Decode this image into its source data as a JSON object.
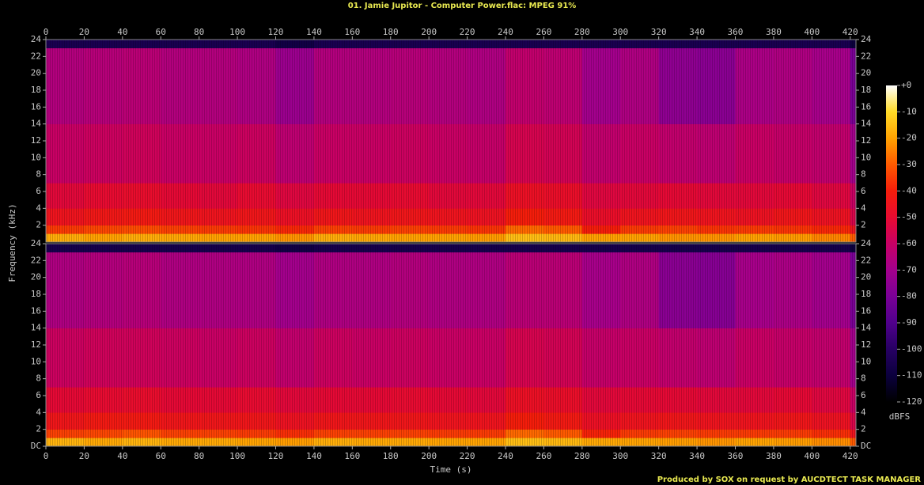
{
  "chart_data": {
    "type": "spectrogram",
    "title": "01. Jamie Jupitor - Computer Power.flac: MPEG 91%",
    "x_label": "Time (s)",
    "y_label": "Frequency (kHz)",
    "colorbar_label": "dBFS",
    "footer": "Produced by SOX on request by AUCDTECT TASK MANAGER",
    "xlim": [
      0,
      423
    ],
    "xticks": [
      0,
      20,
      40,
      60,
      80,
      100,
      120,
      140,
      160,
      180,
      200,
      220,
      240,
      260,
      280,
      300,
      320,
      340,
      360,
      380,
      400,
      420
    ],
    "ylim": [
      0,
      24
    ],
    "clim": [
      -120,
      0
    ],
    "cticks": [
      {
        "value": 0,
        "label": "+0"
      },
      -10,
      -20,
      -30,
      -40,
      -50,
      -60,
      -70,
      -80,
      -90,
      -100,
      -110,
      -120
    ],
    "time_edges": [
      0,
      20,
      40,
      60,
      80,
      100,
      120,
      140,
      160,
      180,
      200,
      220,
      240,
      260,
      280,
      300,
      320,
      340,
      360,
      380,
      400,
      420,
      423
    ],
    "freq_edges": [
      0,
      1,
      2,
      4,
      7,
      14,
      23,
      24
    ],
    "channels": [
      {
        "yticks": [
          2,
          4,
          6,
          8,
          10,
          12,
          14,
          16,
          18,
          20,
          22,
          24
        ],
        "values": [
          [
            -18,
            -20,
            -18,
            -19,
            -20,
            -20,
            -22,
            -18,
            -19,
            -20,
            -20,
            -21,
            -15,
            -16,
            -20,
            -20,
            -22,
            -22,
            -20,
            -21,
            -24,
            -30
          ],
          [
            -35,
            -33,
            -32,
            -34,
            -35,
            -36,
            -38,
            -34,
            -35,
            -34,
            -35,
            -36,
            -28,
            -30,
            -40,
            -35,
            -34,
            -36,
            -35,
            -36,
            -38,
            -45
          ],
          [
            -45,
            -43,
            -42,
            -44,
            -45,
            -44,
            -47,
            -44,
            -45,
            -44,
            -45,
            -46,
            -40,
            -42,
            -48,
            -45,
            -44,
            -45,
            -46,
            -44,
            -46,
            -55
          ],
          [
            -52,
            -50,
            -49,
            -51,
            -52,
            -50,
            -53,
            -51,
            -51,
            -50,
            -52,
            -52,
            -47,
            -48,
            -53,
            -52,
            -51,
            -52,
            -52,
            -51,
            -53,
            -60
          ],
          [
            -60,
            -59,
            -58,
            -60,
            -60,
            -59,
            -63,
            -60,
            -60,
            -59,
            -60,
            -61,
            -56,
            -57,
            -62,
            -60,
            -62,
            -63,
            -60,
            -61,
            -62,
            -70
          ],
          [
            -66,
            -65,
            -64,
            -66,
            -66,
            -67,
            -72,
            -66,
            -66,
            -65,
            -66,
            -67,
            -62,
            -63,
            -70,
            -67,
            -75,
            -76,
            -68,
            -67,
            -69,
            -80
          ],
          [
            -105,
            -105,
            -105,
            -105,
            -105,
            -105,
            -108,
            -105,
            -105,
            -105,
            -105,
            -105,
            -105,
            -105,
            -105,
            -105,
            -105,
            -105,
            -105,
            -105,
            -105,
            -110
          ]
        ]
      },
      {
        "yticks": [
          {
            "value": 0,
            "label": "DC"
          },
          2,
          4,
          6,
          8,
          10,
          12,
          14,
          16,
          18,
          20,
          22,
          24
        ],
        "values": [
          [
            -17,
            -19,
            -17,
            -19,
            -19,
            -20,
            -21,
            -18,
            -19,
            -19,
            -20,
            -20,
            -15,
            -16,
            -19,
            -20,
            -21,
            -22,
            -20,
            -21,
            -23,
            -30
          ],
          [
            -34,
            -33,
            -31,
            -34,
            -34,
            -35,
            -37,
            -34,
            -34,
            -34,
            -35,
            -35,
            -28,
            -30,
            -39,
            -35,
            -34,
            -35,
            -35,
            -35,
            -37,
            -45
          ],
          [
            -44,
            -42,
            -42,
            -44,
            -44,
            -44,
            -46,
            -44,
            -44,
            -44,
            -45,
            -45,
            -40,
            -42,
            -47,
            -45,
            -44,
            -45,
            -45,
            -44,
            -46,
            -55
          ],
          [
            -51,
            -50,
            -49,
            -51,
            -51,
            -50,
            -52,
            -51,
            -51,
            -50,
            -51,
            -52,
            -47,
            -48,
            -52,
            -51,
            -51,
            -52,
            -52,
            -51,
            -53,
            -60
          ],
          [
            -59,
            -58,
            -58,
            -59,
            -60,
            -59,
            -62,
            -59,
            -60,
            -59,
            -60,
            -60,
            -56,
            -57,
            -61,
            -60,
            -62,
            -63,
            -60,
            -61,
            -62,
            -70
          ],
          [
            -67,
            -66,
            -65,
            -67,
            -67,
            -67,
            -70,
            -67,
            -67,
            -66,
            -67,
            -67,
            -64,
            -64,
            -69,
            -67,
            -76,
            -77,
            -69,
            -68,
            -70,
            -80
          ],
          [
            -106,
            -106,
            -106,
            -106,
            -106,
            -106,
            -108,
            -106,
            -106,
            -106,
            -106,
            -106,
            -106,
            -106,
            -106,
            -106,
            -106,
            -106,
            -106,
            -106,
            -106,
            -110
          ]
        ]
      }
    ]
  }
}
